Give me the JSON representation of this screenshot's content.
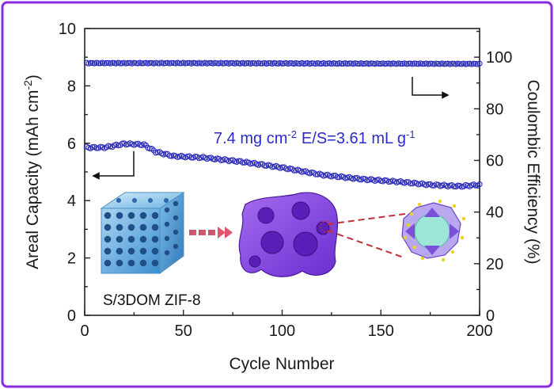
{
  "chart_data": {
    "type": "scatter",
    "title": "",
    "xlabel": "Cycle Number",
    "ylabel_left": "Areal Capacity (mAh cm⁻²)",
    "ylabel_left_base": "Areal Capacity (mAh cm",
    "ylabel_left_sup": "-2",
    "ylabel_left_close": ")",
    "ylabel_right": "Coulombic Efficiency (%)",
    "xlim": [
      0,
      200
    ],
    "ylim_left": [
      0,
      10
    ],
    "ylim_right": [
      0,
      111.1
    ],
    "x_ticks": [
      "0",
      "50",
      "100",
      "150",
      "200"
    ],
    "y_left_ticks": [
      "0",
      "2",
      "4",
      "6",
      "8",
      "10"
    ],
    "y_right_ticks": [
      "0",
      "20",
      "40",
      "60",
      "80",
      "100"
    ],
    "grid": false,
    "annotation": {
      "loading": "7.4 mg cm",
      "loading_sup": "-2",
      "es": "E/S=3.61 mL g",
      "es_sup": "-1"
    },
    "inset_label": "S/3DOM ZIF-8",
    "series": [
      {
        "axis": "left",
        "color": "#2a2ab8",
        "marker": "open-circle",
        "keypoints": [
          [
            1,
            5.85
          ],
          [
            10,
            5.85
          ],
          [
            20,
            5.98
          ],
          [
            30,
            5.95
          ],
          [
            36,
            5.7
          ],
          [
            45,
            5.55
          ],
          [
            60,
            5.5
          ],
          [
            80,
            5.35
          ],
          [
            100,
            5.15
          ],
          [
            120,
            4.9
          ],
          [
            140,
            4.75
          ],
          [
            160,
            4.65
          ],
          [
            175,
            4.55
          ],
          [
            190,
            4.5
          ],
          [
            200,
            4.55
          ]
        ]
      },
      {
        "axis": "right",
        "color": "#2a2ab8",
        "marker": "open-circle",
        "keypoints": [
          [
            1,
            97.7
          ],
          [
            50,
            97.7
          ],
          [
            100,
            97.6
          ],
          [
            150,
            97.5
          ],
          [
            200,
            97.4
          ]
        ]
      }
    ]
  },
  "colors": {
    "frame_border": "#8a2be2",
    "markers": "#2a2ab8",
    "annotation": "#2b2bd0"
  }
}
